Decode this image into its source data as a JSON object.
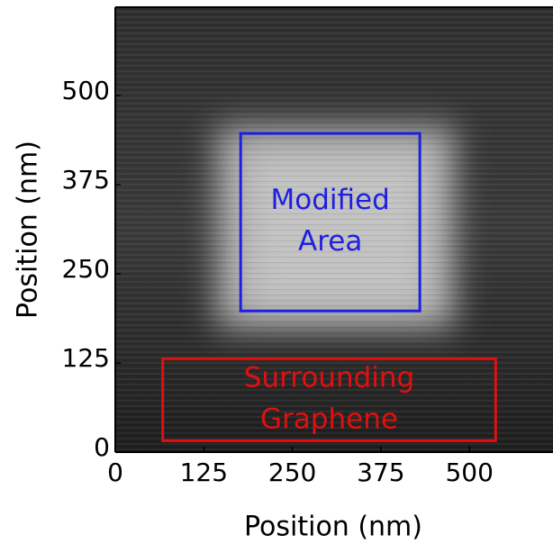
{
  "chart_data": {
    "type": "image",
    "xlabel": "Position (nm)",
    "ylabel": "Position (nm)",
    "xlim": [
      0,
      618
    ],
    "ylim": [
      0,
      624
    ],
    "xticks": [
      0,
      125,
      250,
      375,
      500
    ],
    "yticks": [
      0,
      125,
      250,
      375,
      500
    ],
    "annotations": [
      {
        "lines": [
          "Modified",
          "Area"
        ],
        "color": "#1f1fe0",
        "x": [
          177,
          430
        ],
        "y": [
          198,
          447
        ]
      },
      {
        "lines": [
          "Surrounding",
          "Graphene"
        ],
        "color": "#e01010",
        "x": [
          67,
          537
        ],
        "y": [
          16,
          131
        ]
      }
    ]
  }
}
